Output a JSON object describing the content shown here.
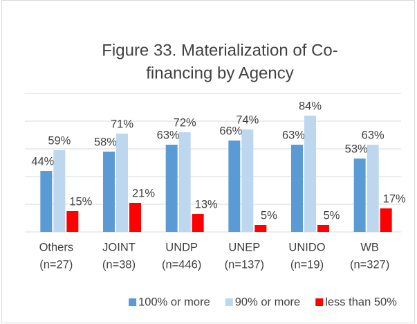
{
  "chart_data": {
    "type": "bar",
    "title": [
      "Figure 33. Materialization of Co-",
      "financing by Agency"
    ],
    "categories": [
      [
        "Others",
        "(n=27)"
      ],
      [
        "JOINT",
        "(n=38)"
      ],
      [
        "UNDP",
        "(n=446)"
      ],
      [
        "UNEP",
        "(n=137)"
      ],
      [
        "UNIDO",
        "(n=19)"
      ],
      [
        "WB",
        "(n=327)"
      ]
    ],
    "series": [
      {
        "name": "100% or more",
        "color": "#5b9bd5",
        "values": [
          44,
          58,
          63,
          66,
          63,
          53
        ],
        "value_labels": [
          "44%",
          "58%",
          "63%",
          "66%",
          "63%",
          "53%"
        ]
      },
      {
        "name": "90% or more",
        "color": "#bdd7ee",
        "values": [
          59,
          71,
          72,
          74,
          84,
          63
        ],
        "value_labels": [
          "59%",
          "71%",
          "72%",
          "74%",
          "84%",
          "63%"
        ]
      },
      {
        "name": "less than 50%",
        "color": "#ff0000",
        "values": [
          15,
          21,
          13,
          5,
          5,
          17
        ],
        "value_labels": [
          "15%",
          "21%",
          "13%",
          "5%",
          "5%",
          "17%"
        ]
      }
    ],
    "ylim": [
      0,
      100
    ],
    "yticks": [
      0,
      20,
      40,
      60,
      80,
      100
    ],
    "grid": true,
    "legend": "bottom"
  }
}
